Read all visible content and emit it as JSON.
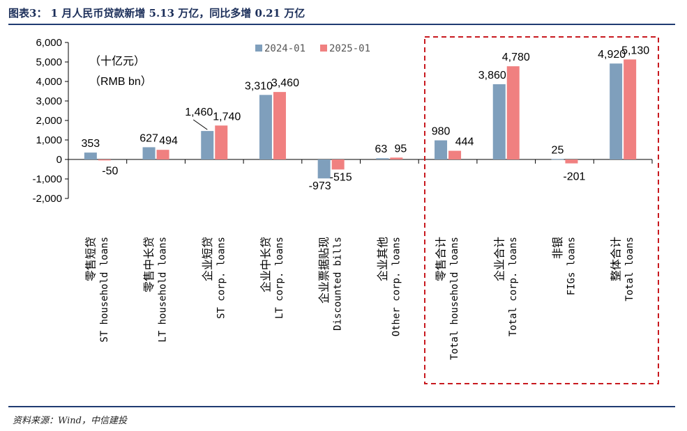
{
  "header": {
    "title": "图表3：  1 月人民币贷款新增 5.13 万亿，同比多增 0.21 万亿"
  },
  "footer": {
    "source": "资料来源：Wind，中信建投"
  },
  "chart_data": {
    "type": "bar",
    "unit_cn": "（十亿元）",
    "unit_en": "（RMB bn）",
    "ylim": [
      -2000,
      6000
    ],
    "yticks": [
      "-2,000",
      "-1,000",
      "0",
      "1,000",
      "2,000",
      "3,000",
      "4,000",
      "5,000",
      "6,000"
    ],
    "ytick_values": [
      -2000,
      -1000,
      0,
      1000,
      2000,
      3000,
      4000,
      5000,
      6000
    ],
    "legend_position": "top",
    "highlight_box": "dashed red box around last four categories",
    "categories": [
      {
        "cn": "零售短贷",
        "en": "ST household loans"
      },
      {
        "cn": "零售中长贷",
        "en": "LT household loans"
      },
      {
        "cn": "企业短贷",
        "en": "ST corp. loans"
      },
      {
        "cn": "企业中长贷",
        "en": "LT corp. loans"
      },
      {
        "cn": "企业票据贴现",
        "en": "Discounted bills"
      },
      {
        "cn": "企业其他",
        "en": "Other corp. loans"
      },
      {
        "cn": "零售合计",
        "en": "Total household loans"
      },
      {
        "cn": "企业合计",
        "en": "Total corp. loans"
      },
      {
        "cn": "非银",
        "en": "FIGs loans"
      },
      {
        "cn": "整体合计",
        "en": "Total loans"
      }
    ],
    "series": [
      {
        "name": "2024-01",
        "color": "#7f9fbc",
        "values": [
          353,
          627,
          1460,
          3310,
          -973,
          63,
          980,
          3860,
          25,
          4920
        ],
        "labels": [
          "353",
          "627",
          "1,460",
          "3,310",
          "-973",
          "63",
          "980",
          "3,860",
          "25",
          "4,920"
        ]
      },
      {
        "name": "2025-01",
        "color": "#f08080",
        "values": [
          -50,
          494,
          1740,
          3460,
          -515,
          95,
          444,
          4780,
          -201,
          5130
        ],
        "labels": [
          "-50",
          "494",
          "1,740",
          "3,460",
          "-515",
          "95",
          "444",
          "4,780",
          "-201",
          "5,130"
        ]
      }
    ]
  }
}
